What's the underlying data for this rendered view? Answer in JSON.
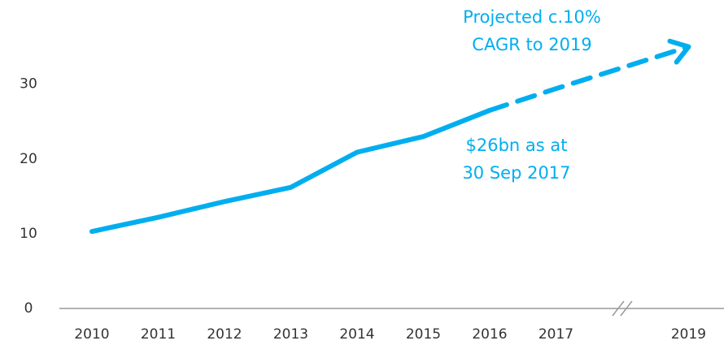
{
  "chart_data": {
    "type": "line",
    "categories": [
      "2010",
      "2011",
      "2012",
      "2013",
      "2014",
      "2015",
      "2016",
      "2017",
      null,
      "2019"
    ],
    "series": [
      {
        "color": "#00aeef",
        "style": "solid",
        "values": [
          10.3,
          12.2,
          14.3,
          16.2,
          20.9,
          23.0,
          26.5,
          null,
          null,
          null
        ]
      },
      {
        "color": "#00aeef",
        "style": "dashed",
        "values": [
          null,
          null,
          null,
          null,
          null,
          null,
          26.5,
          29.4,
          32.2,
          35.0
        ]
      }
    ],
    "ylim": [
      0,
      38
    ],
    "yticks": [
      0,
      10,
      20,
      30
    ],
    "grid": false,
    "axis_break": true,
    "annotations": [
      {
        "lines": [
          "Projected c.10%",
          "CAGR to 2019"
        ]
      },
      {
        "lines": [
          "$26bn as at",
          "30 Sep 2017"
        ]
      }
    ]
  }
}
